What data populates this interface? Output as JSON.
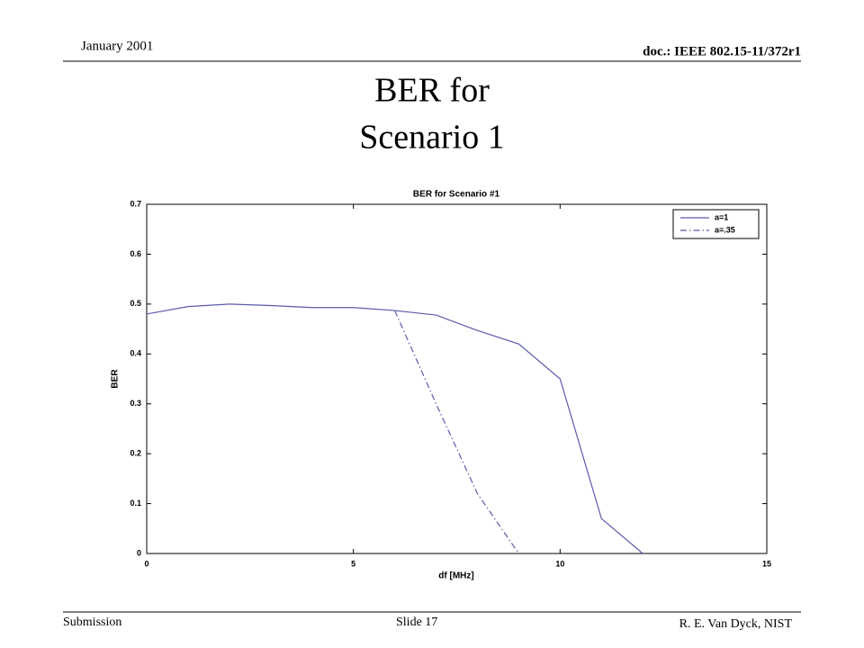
{
  "header": {
    "date": "January 2001",
    "doc": "doc.: IEEE 802.15-11/372r1"
  },
  "slide_title": [
    "BER for",
    "Scenario 1"
  ],
  "footer": {
    "left": "Submission",
    "center": "Slide 17",
    "right": "R. E. Van Dyck, NIST"
  },
  "chart_data": {
    "type": "line",
    "title": "BER for Scenario #1",
    "x_label": "df [MHz]",
    "y_label": "BER",
    "x": [
      0,
      1,
      2,
      3,
      4,
      5,
      6,
      7,
      8,
      9,
      10,
      11,
      12
    ],
    "series": [
      {
        "name": "a=1",
        "color": "#5b5bab",
        "style": "solid",
        "values": [
          0.48,
          0.495,
          0.5,
          0.497,
          0.493,
          0.493,
          0.487,
          0.478,
          0.447,
          0.42,
          0.35,
          0.07,
          0
        ]
      },
      {
        "name": "a=.35",
        "color": "#5b5bab",
        "style": "dashdot",
        "values": [
          null,
          null,
          null,
          null,
          null,
          null,
          0.487,
          0.3,
          0.12,
          0,
          null,
          null,
          null
        ]
      }
    ],
    "xlim": [
      0,
      15
    ],
    "xticks": [
      0,
      5,
      10,
      15
    ],
    "ylim": [
      0,
      0.7
    ],
    "yticks": [
      0,
      0.1,
      0.2,
      0.3,
      0.4,
      0.5,
      0.6,
      0.7
    ],
    "grid": false,
    "legend": "upper right"
  }
}
